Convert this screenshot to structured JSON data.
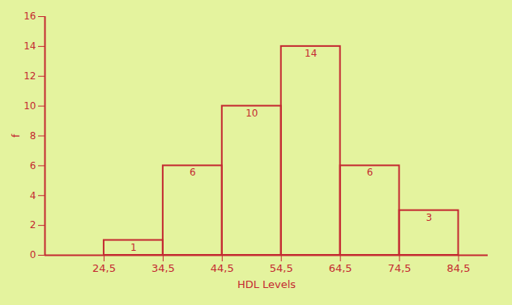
{
  "chart_data": {
    "type": "histogram",
    "bins": [
      24.5,
      34.5,
      44.5,
      54.5,
      64.5,
      74.5,
      84.5
    ],
    "values": [
      1,
      6,
      10,
      14,
      6,
      3
    ],
    "x_label": "HDL Levels",
    "y_label": "f",
    "xlim": [
      14.5,
      89.5
    ],
    "ylim": [
      0,
      16
    ],
    "xticks": [
      {
        "value": 24.5,
        "label": "24,5"
      },
      {
        "value": 34.5,
        "label": "34,5"
      },
      {
        "value": 44.5,
        "label": "44,5"
      },
      {
        "value": 54.5,
        "label": "54,5"
      },
      {
        "value": 64.5,
        "label": "64,5"
      },
      {
        "value": 74.5,
        "label": "74,5"
      },
      {
        "value": 84.5,
        "label": "84,5"
      }
    ],
    "yticks": [
      0,
      2,
      4,
      6,
      8,
      10,
      12,
      14,
      16
    ],
    "color": "#c42a32",
    "data_labels": true
  }
}
